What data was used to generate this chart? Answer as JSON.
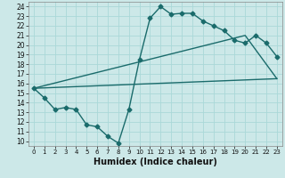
{
  "title": "",
  "xlabel": "Humidex (Indice chaleur)",
  "xlim": [
    -0.5,
    23.5
  ],
  "ylim": [
    9.5,
    24.5
  ],
  "xticks": [
    0,
    1,
    2,
    3,
    4,
    5,
    6,
    7,
    8,
    9,
    10,
    11,
    12,
    13,
    14,
    15,
    16,
    17,
    18,
    19,
    20,
    21,
    22,
    23
  ],
  "yticks": [
    10,
    11,
    12,
    13,
    14,
    15,
    16,
    17,
    18,
    19,
    20,
    21,
    22,
    23,
    24
  ],
  "bg_color": "#cce8e8",
  "line_color": "#1a6b6b",
  "grid_color": "#aad8d8",
  "line1_x": [
    0,
    1,
    2,
    3,
    4,
    5,
    6,
    7,
    8,
    9,
    10,
    11,
    12,
    13,
    14,
    15,
    16,
    17,
    18,
    19,
    20,
    21,
    22,
    23
  ],
  "line1_y": [
    15.5,
    14.5,
    13.3,
    13.5,
    13.3,
    11.7,
    11.5,
    10.5,
    9.8,
    13.3,
    18.5,
    22.8,
    24.0,
    23.2,
    23.3,
    23.3,
    22.5,
    22.0,
    21.5,
    20.5,
    20.2,
    21.0,
    20.2,
    18.8
  ],
  "line2_x": [
    0,
    23
  ],
  "line2_y": [
    15.5,
    16.5
  ],
  "line3_x": [
    0,
    20,
    23
  ],
  "line3_y": [
    15.5,
    21.0,
    16.5
  ],
  "line_width": 1.0,
  "marker": "D",
  "marker_size": 2.5,
  "tick_fontsize": 5.5,
  "xlabel_fontsize": 7
}
